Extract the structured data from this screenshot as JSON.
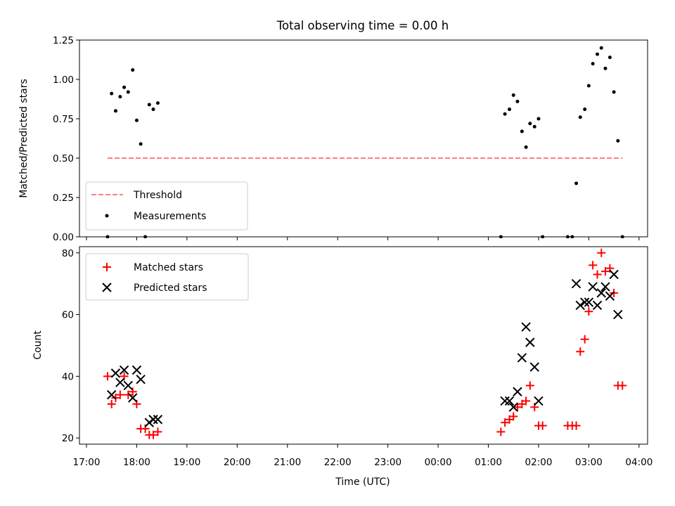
{
  "chart_data": {
    "title": "Total observing time = 0.00 h",
    "x_axis": {
      "label": "Time (UTC)",
      "ticks": [
        "17:00",
        "18:00",
        "19:00",
        "20:00",
        "21:00",
        "22:00",
        "23:00",
        "00:00",
        "01:00",
        "02:00",
        "03:00",
        "04:00"
      ],
      "range_hours": [
        16.86,
        28.17
      ]
    },
    "panels": [
      {
        "type": "scatter",
        "ylabel": "Matched/Predicted stars",
        "ylim": [
          0,
          1.25
        ],
        "yticks": [
          "0.00",
          "0.25",
          "0.50",
          "0.75",
          "1.00",
          "1.25"
        ],
        "legend_position": "lower-left",
        "threshold": {
          "name": "Threshold",
          "value": 0.5,
          "x_range": [
            17.42,
            27.67
          ],
          "color": "#ff8080"
        },
        "series": [
          {
            "name": "Measurements",
            "color": "#000000",
            "x": [
              17.42,
              17.5,
              17.58,
              17.67,
              17.75,
              17.83,
              17.92,
              18.0,
              18.08,
              18.17,
              18.25,
              18.33,
              18.42,
              25.25,
              25.33,
              25.42,
              25.5,
              25.58,
              25.67,
              25.75,
              25.83,
              25.92,
              26.0,
              26.08,
              26.58,
              26.67,
              26.75,
              26.83,
              26.92,
              27.0,
              27.08,
              27.17,
              27.25,
              27.33,
              27.42,
              27.5,
              27.58,
              27.67
            ],
            "y": [
              0.0,
              0.91,
              0.8,
              0.89,
              0.95,
              0.92,
              1.06,
              0.74,
              0.59,
              0.0,
              0.84,
              0.81,
              0.85,
              0.0,
              0.78,
              0.81,
              0.9,
              0.86,
              0.67,
              0.57,
              0.72,
              0.7,
              0.75,
              0.0,
              0.0,
              0.0,
              0.34,
              0.76,
              0.81,
              0.96,
              1.1,
              1.16,
              1.2,
              1.07,
              1.14,
              0.92,
              0.61,
              0.0
            ]
          }
        ]
      },
      {
        "type": "scatter",
        "ylabel": "Count",
        "ylim": [
          18,
          82
        ],
        "yticks": [
          "20",
          "40",
          "60",
          "80"
        ],
        "legend_position": "upper-left",
        "series": [
          {
            "name": "Matched stars",
            "marker": "plus",
            "color": "#ff0000",
            "x": [
              17.42,
              17.5,
              17.58,
              17.67,
              17.75,
              17.83,
              17.92,
              18.0,
              18.08,
              18.17,
              18.25,
              18.33,
              18.42,
              25.25,
              25.33,
              25.42,
              25.5,
              25.58,
              25.67,
              25.75,
              25.83,
              25.92,
              26.0,
              26.08,
              26.58,
              26.67,
              26.75,
              26.83,
              26.92,
              27.0,
              27.08,
              27.17,
              27.25,
              27.33,
              27.42,
              27.5,
              27.58,
              27.67
            ],
            "y": [
              40,
              31,
              33,
              34,
              40,
              34,
              35,
              31,
              23,
              23,
              21,
              21,
              22,
              22,
              25,
              26,
              27,
              30,
              31,
              32,
              37,
              30,
              24,
              24,
              24,
              24,
              24,
              48,
              52,
              61,
              76,
              73,
              80,
              74,
              75,
              67,
              37,
              37
            ]
          },
          {
            "name": "Predicted stars",
            "marker": "x",
            "color": "#000000",
            "x": [
              17.5,
              17.58,
              17.67,
              17.75,
              17.83,
              17.92,
              18.0,
              18.08,
              18.25,
              18.33,
              18.42,
              25.33,
              25.42,
              25.5,
              25.58,
              25.67,
              25.75,
              25.83,
              25.92,
              26.0,
              26.75,
              26.83,
              26.92,
              27.0,
              27.08,
              27.17,
              27.25,
              27.33,
              27.42,
              27.5,
              27.58
            ],
            "y": [
              34,
              41,
              38,
              42,
              37,
              33,
              42,
              39,
              25,
              26,
              26,
              32,
              32,
              30,
              35,
              46,
              56,
              51,
              43,
              32,
              70,
              63,
              64,
              64,
              69,
              63,
              67,
              69,
              66,
              73,
              60
            ]
          }
        ]
      }
    ]
  }
}
